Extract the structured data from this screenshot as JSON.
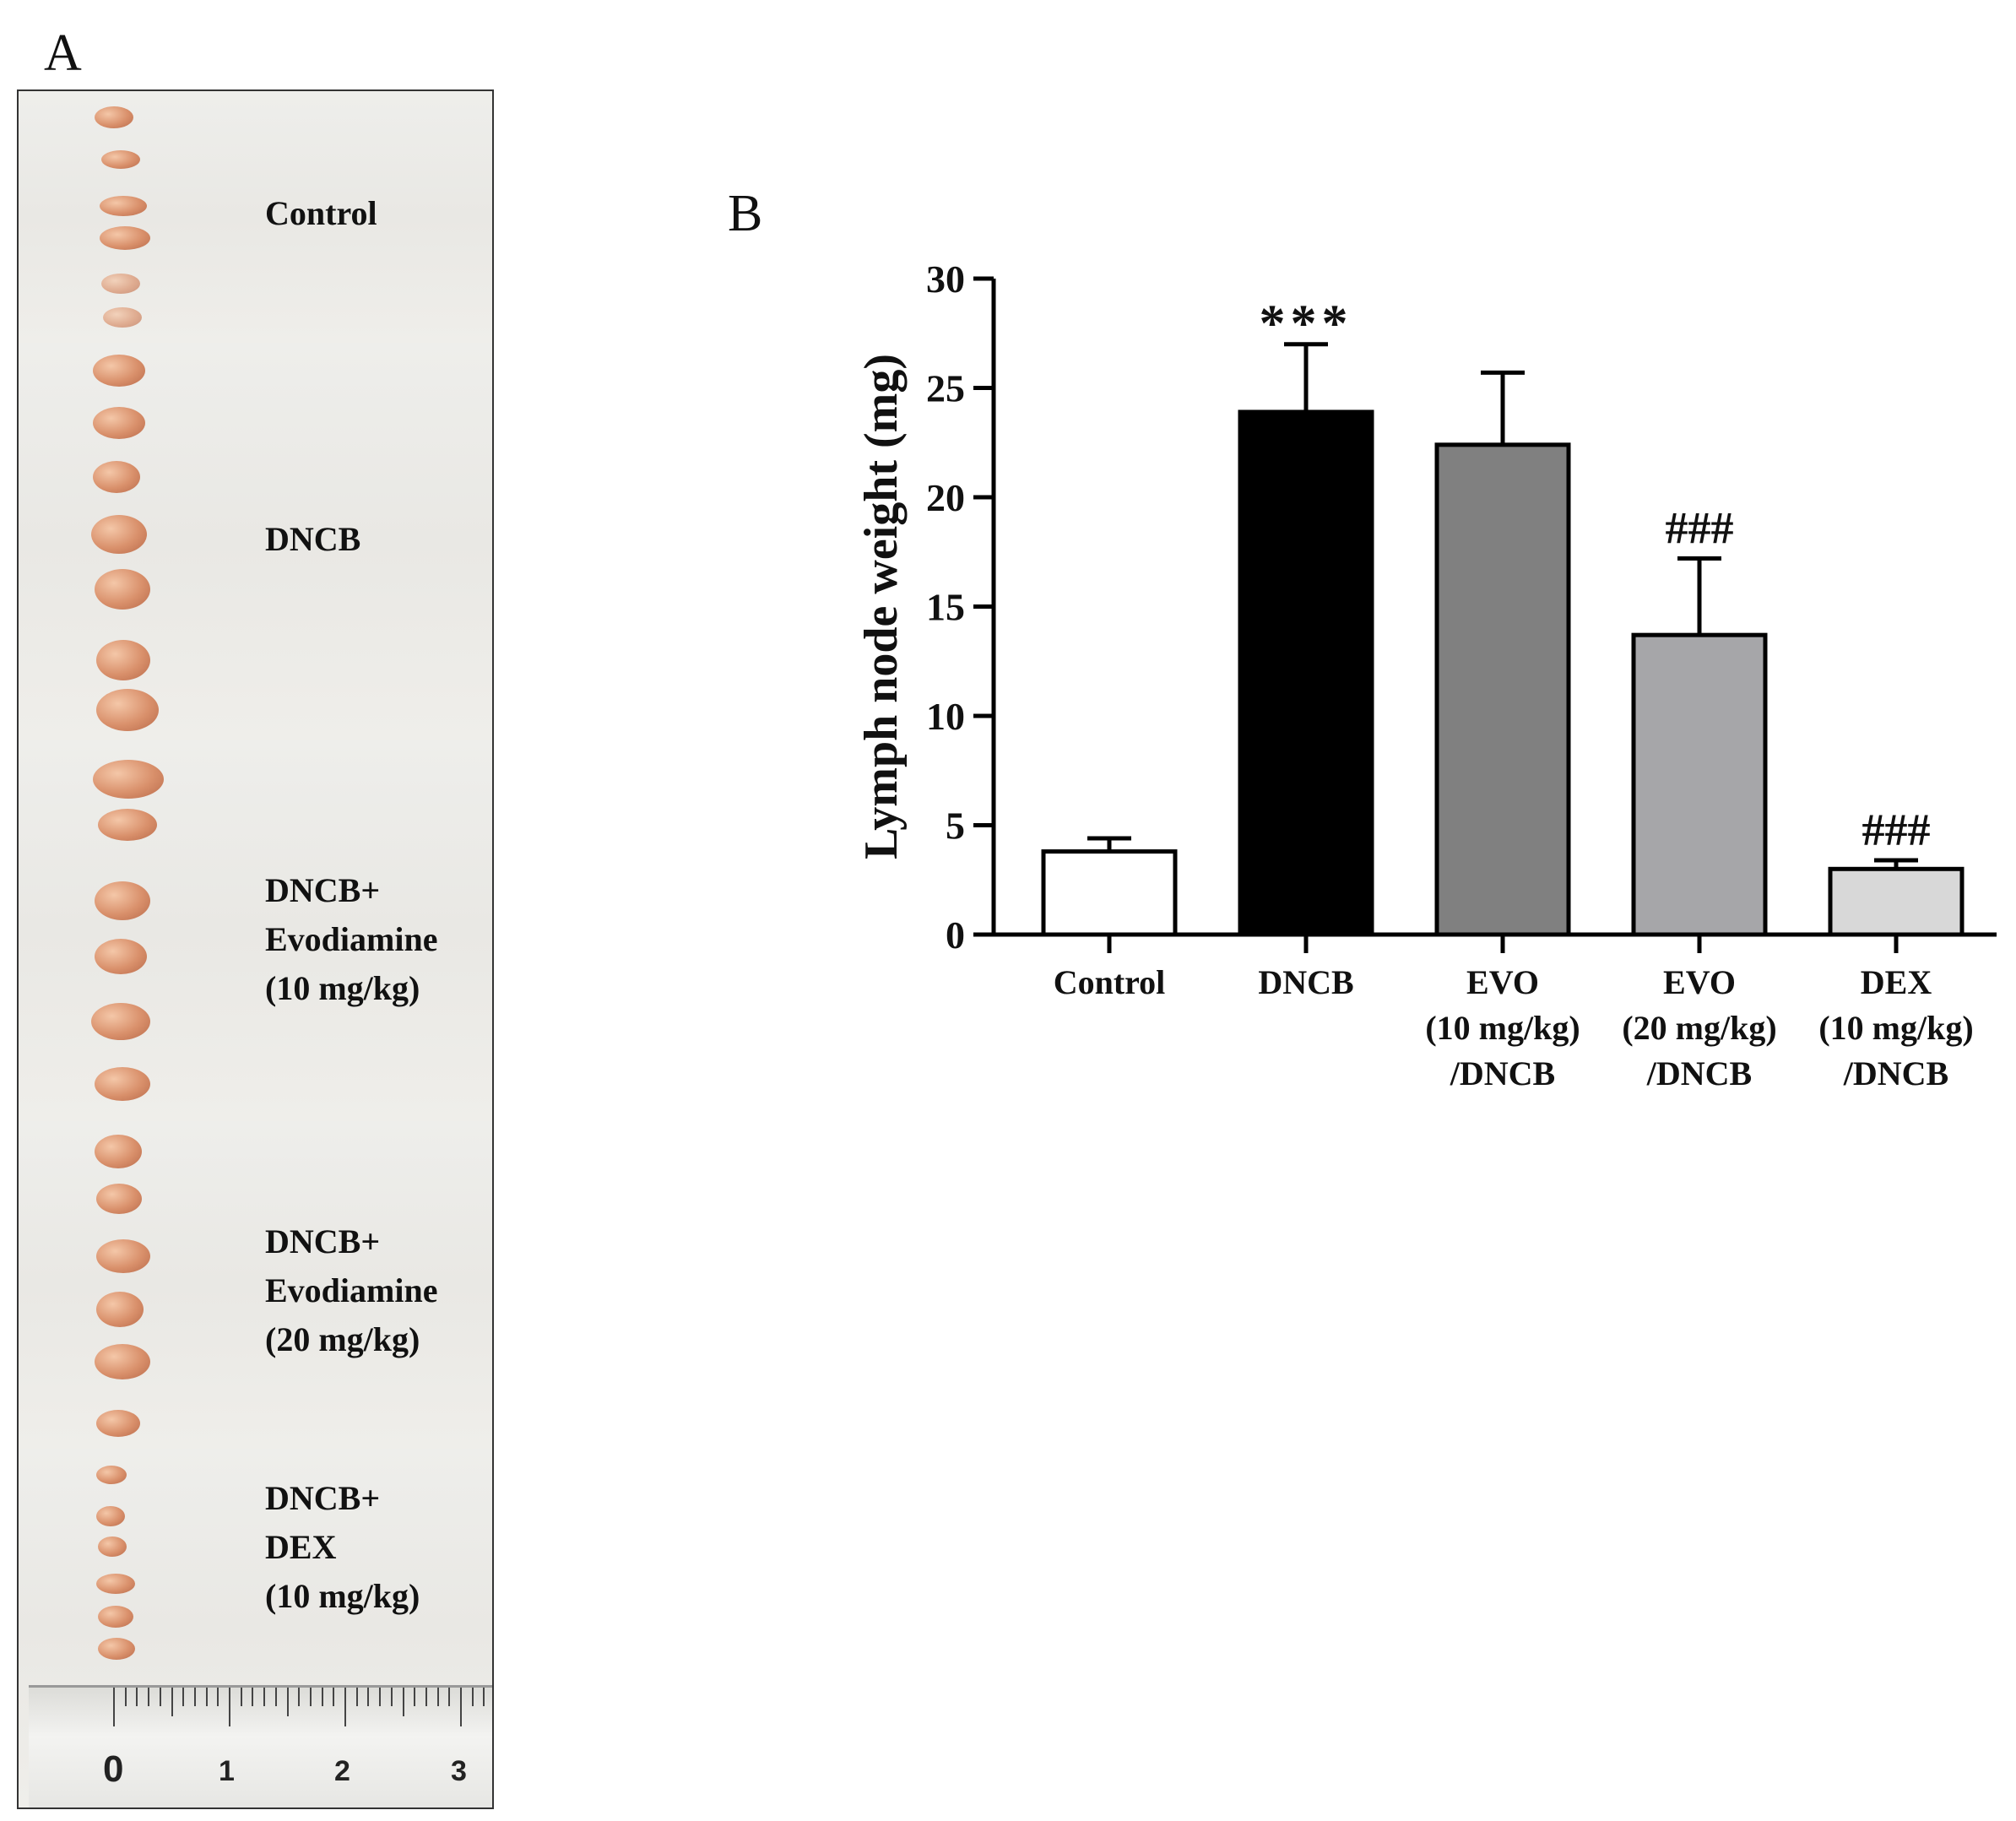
{
  "panel_a": {
    "letter": "A",
    "sections": [
      {
        "label_lines": [
          "Control"
        ]
      },
      {
        "label_lines": [
          "DNCB"
        ]
      },
      {
        "label_lines": [
          "DNCB+",
          "Evodiamine",
          "(10 mg/kg)"
        ]
      },
      {
        "label_lines": [
          "DNCB+",
          "Evodiamine",
          "(20 mg/kg)"
        ]
      },
      {
        "label_lines": [
          "DNCB+",
          "DEX",
          "(10 mg/kg)"
        ]
      }
    ],
    "ruler_numbers": [
      "0",
      "1",
      "2",
      "3"
    ]
  },
  "panel_b": {
    "letter": "B"
  },
  "chart_data": {
    "type": "bar",
    "title": "",
    "xlabel": "",
    "ylabel": "Lymph node weight (mg)",
    "ylim": [
      0,
      30
    ],
    "yticks": [
      0,
      5,
      10,
      15,
      20,
      25,
      30
    ],
    "categories": [
      [
        "Control"
      ],
      [
        "DNCB"
      ],
      [
        "EVO",
        "(10 mg/kg)",
        "/DNCB"
      ],
      [
        "EVO",
        "(20 mg/kg)",
        "/DNCB"
      ],
      [
        "DEX",
        "(10 mg/kg)",
        "/DNCB"
      ]
    ],
    "values": [
      3.8,
      23.9,
      22.4,
      13.7,
      3.0
    ],
    "errors": [
      0.6,
      3.1,
      3.3,
      3.5,
      0.4
    ],
    "colors": [
      "#ffffff",
      "#000000",
      "#808080",
      "#a6a6a9",
      "#d8d8d8"
    ],
    "annotations": [
      "",
      "***",
      "",
      "###",
      "###"
    ]
  }
}
